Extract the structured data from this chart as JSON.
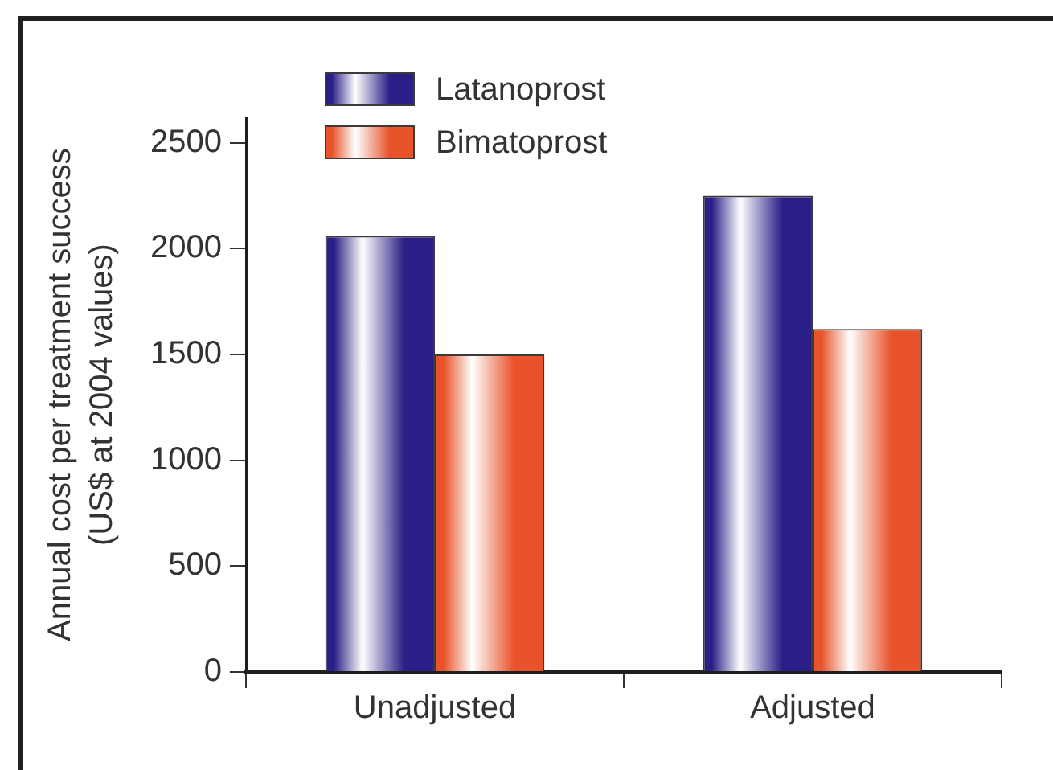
{
  "chart_data": {
    "type": "bar",
    "categories": [
      "Unadjusted",
      "Adjusted"
    ],
    "series": [
      {
        "name": "Latanoprost",
        "color": "#2a1f86",
        "values": [
          2060,
          2250
        ]
      },
      {
        "name": "Bimatoprost",
        "color": "#e8532b",
        "values": [
          1500,
          1620
        ]
      }
    ],
    "ylabel": "Annual cost per treatment success\n(US$ at 2004 values)",
    "ylim": [
      0,
      2620
    ],
    "yticks": [
      0,
      500,
      1000,
      1500,
      2000,
      2500
    ],
    "legend": "top left"
  }
}
